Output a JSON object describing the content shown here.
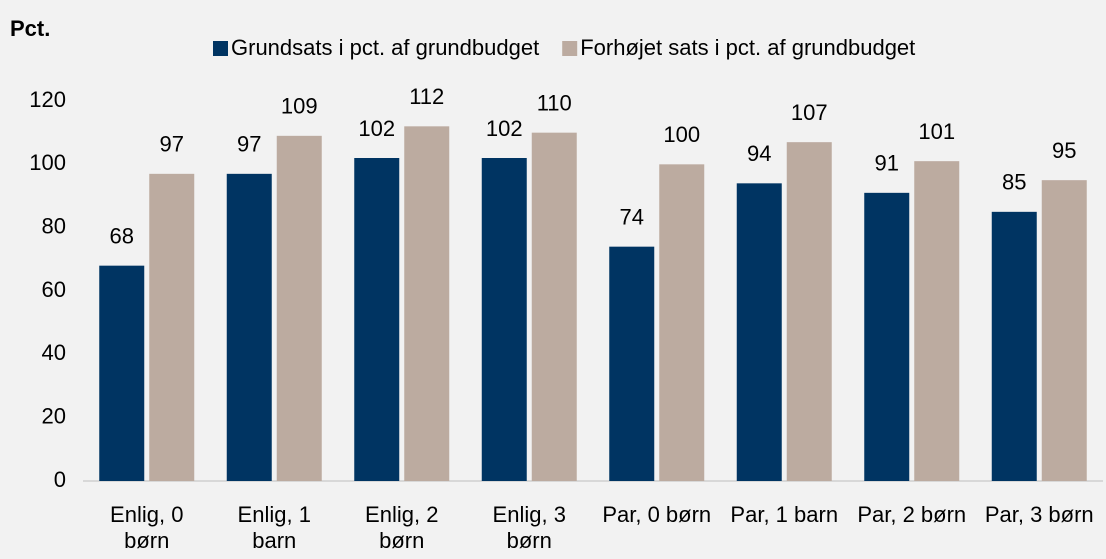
{
  "chart_data": {
    "type": "bar",
    "y_label": "Pct.",
    "categories": [
      "Enlig, 0 børn",
      "Enlig, 1 barn",
      "Enlig, 2 børn",
      "Enlig, 3 børn",
      "Par, 0 børn",
      "Par, 1 barn",
      "Par, 2 børn",
      "Par, 3 børn"
    ],
    "series": [
      {
        "name": "Grundsats i pct. af grundbudget",
        "color": "#003462",
        "values": [
          68,
          97,
          102,
          102,
          74,
          94,
          91,
          85
        ]
      },
      {
        "name": "Forhøjet sats i pct. af grundbudget",
        "color": "#bcaba0",
        "values": [
          97,
          109,
          112,
          110,
          100,
          107,
          101,
          95
        ]
      }
    ],
    "ylim": [
      0,
      120
    ],
    "yticks": [
      0,
      20,
      40,
      60,
      80,
      100,
      120
    ],
    "grid": false,
    "legend": "top"
  }
}
